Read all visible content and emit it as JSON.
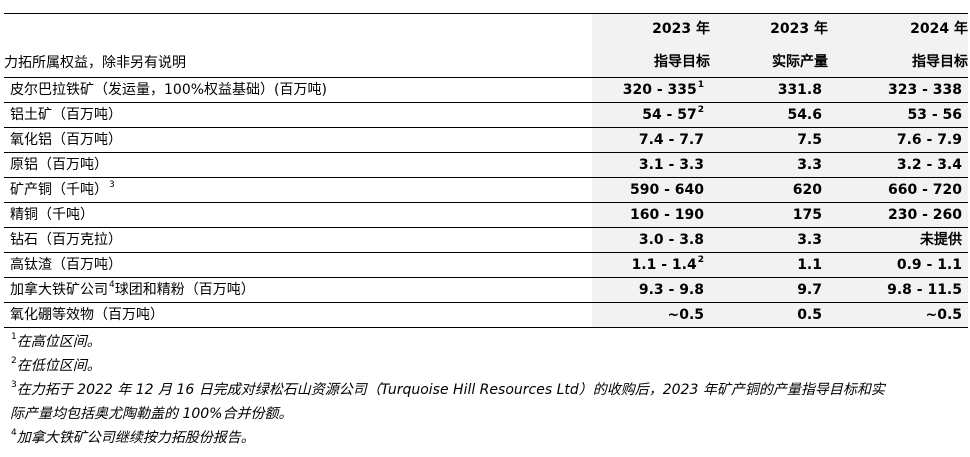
{
  "header": {
    "row_label": "力拓所属权益，除非另有说明",
    "columns": [
      {
        "line1": "2023 年",
        "line2": "指导目标"
      },
      {
        "line1": "2023 年",
        "line2": "实际产量"
      },
      {
        "line1": "2024 年",
        "line2": "指导目标"
      }
    ]
  },
  "rows": [
    {
      "label": "皮尔巴拉铁矿（发运量，100%权益基础）(百万吨)",
      "label_sup": "",
      "c1": "320 - 335",
      "c1_sup": "1",
      "c2": "331.8",
      "c3": "323 - 338"
    },
    {
      "label": "铝土矿（百万吨）",
      "label_sup": "",
      "c1": "54 - 57",
      "c1_sup": "2",
      "c2": "54.6",
      "c3": "53 - 56"
    },
    {
      "label": "氧化铝（百万吨）",
      "label_sup": "",
      "c1": "7.4 - 7.7",
      "c1_sup": "",
      "c2": "7.5",
      "c3": "7.6 - 7.9"
    },
    {
      "label": "原铝（百万吨）",
      "label_sup": "",
      "c1": "3.1 - 3.3",
      "c1_sup": "",
      "c2": "3.3",
      "c3": "3.2 - 3.4"
    },
    {
      "label": "矿产铜（千吨）",
      "label_sup": "3",
      "c1": "590 - 640",
      "c1_sup": "",
      "c2": "620",
      "c3": "660 - 720"
    },
    {
      "label": "精铜（千吨）",
      "label_sup": "",
      "c1": "160 - 190",
      "c1_sup": "",
      "c2": "175",
      "c3": "230 - 260"
    },
    {
      "label": "钻石（百万克拉）",
      "label_sup": "",
      "c1": "3.0 - 3.8",
      "c1_sup": "",
      "c2": "3.3",
      "c3": "未提供"
    },
    {
      "label": "高钛渣（百万吨）",
      "label_sup": "",
      "c1": "1.1 - 1.4",
      "c1_sup": "2",
      "c2": "1.1",
      "c3": "0.9 - 1.1"
    },
    {
      "label": "加拿大铁矿公司",
      "label_sup": "4",
      "label_after": "球团和精粉（百万吨）",
      "c1": "9.3 - 9.8",
      "c1_sup": "",
      "c2": "9.7",
      "c3": "9.8 - 11.5"
    },
    {
      "label": "氧化硼等效物（百万吨）",
      "label_sup": "",
      "c1": "~0.5",
      "c1_sup": "",
      "c2": "0.5",
      "c3": "~0.5"
    }
  ],
  "notes": [
    {
      "mark": "1",
      "text": "在高位区间。"
    },
    {
      "mark": "2",
      "text": "在低位区间。"
    },
    {
      "mark": "3",
      "text": "在力拓于 2022 年 12 月 16 日完成对绿松石山资源公司（Turquoise Hill Resources Ltd）的收购后，2023 年矿产铜的产量指导目标和实"
    },
    {
      "mark": "",
      "text": "际产量均包括奥尤陶勒盖的 100%合并份额。"
    },
    {
      "mark": "4",
      "text": "加拿大铁矿公司继续按力拓股份报告。"
    }
  ]
}
